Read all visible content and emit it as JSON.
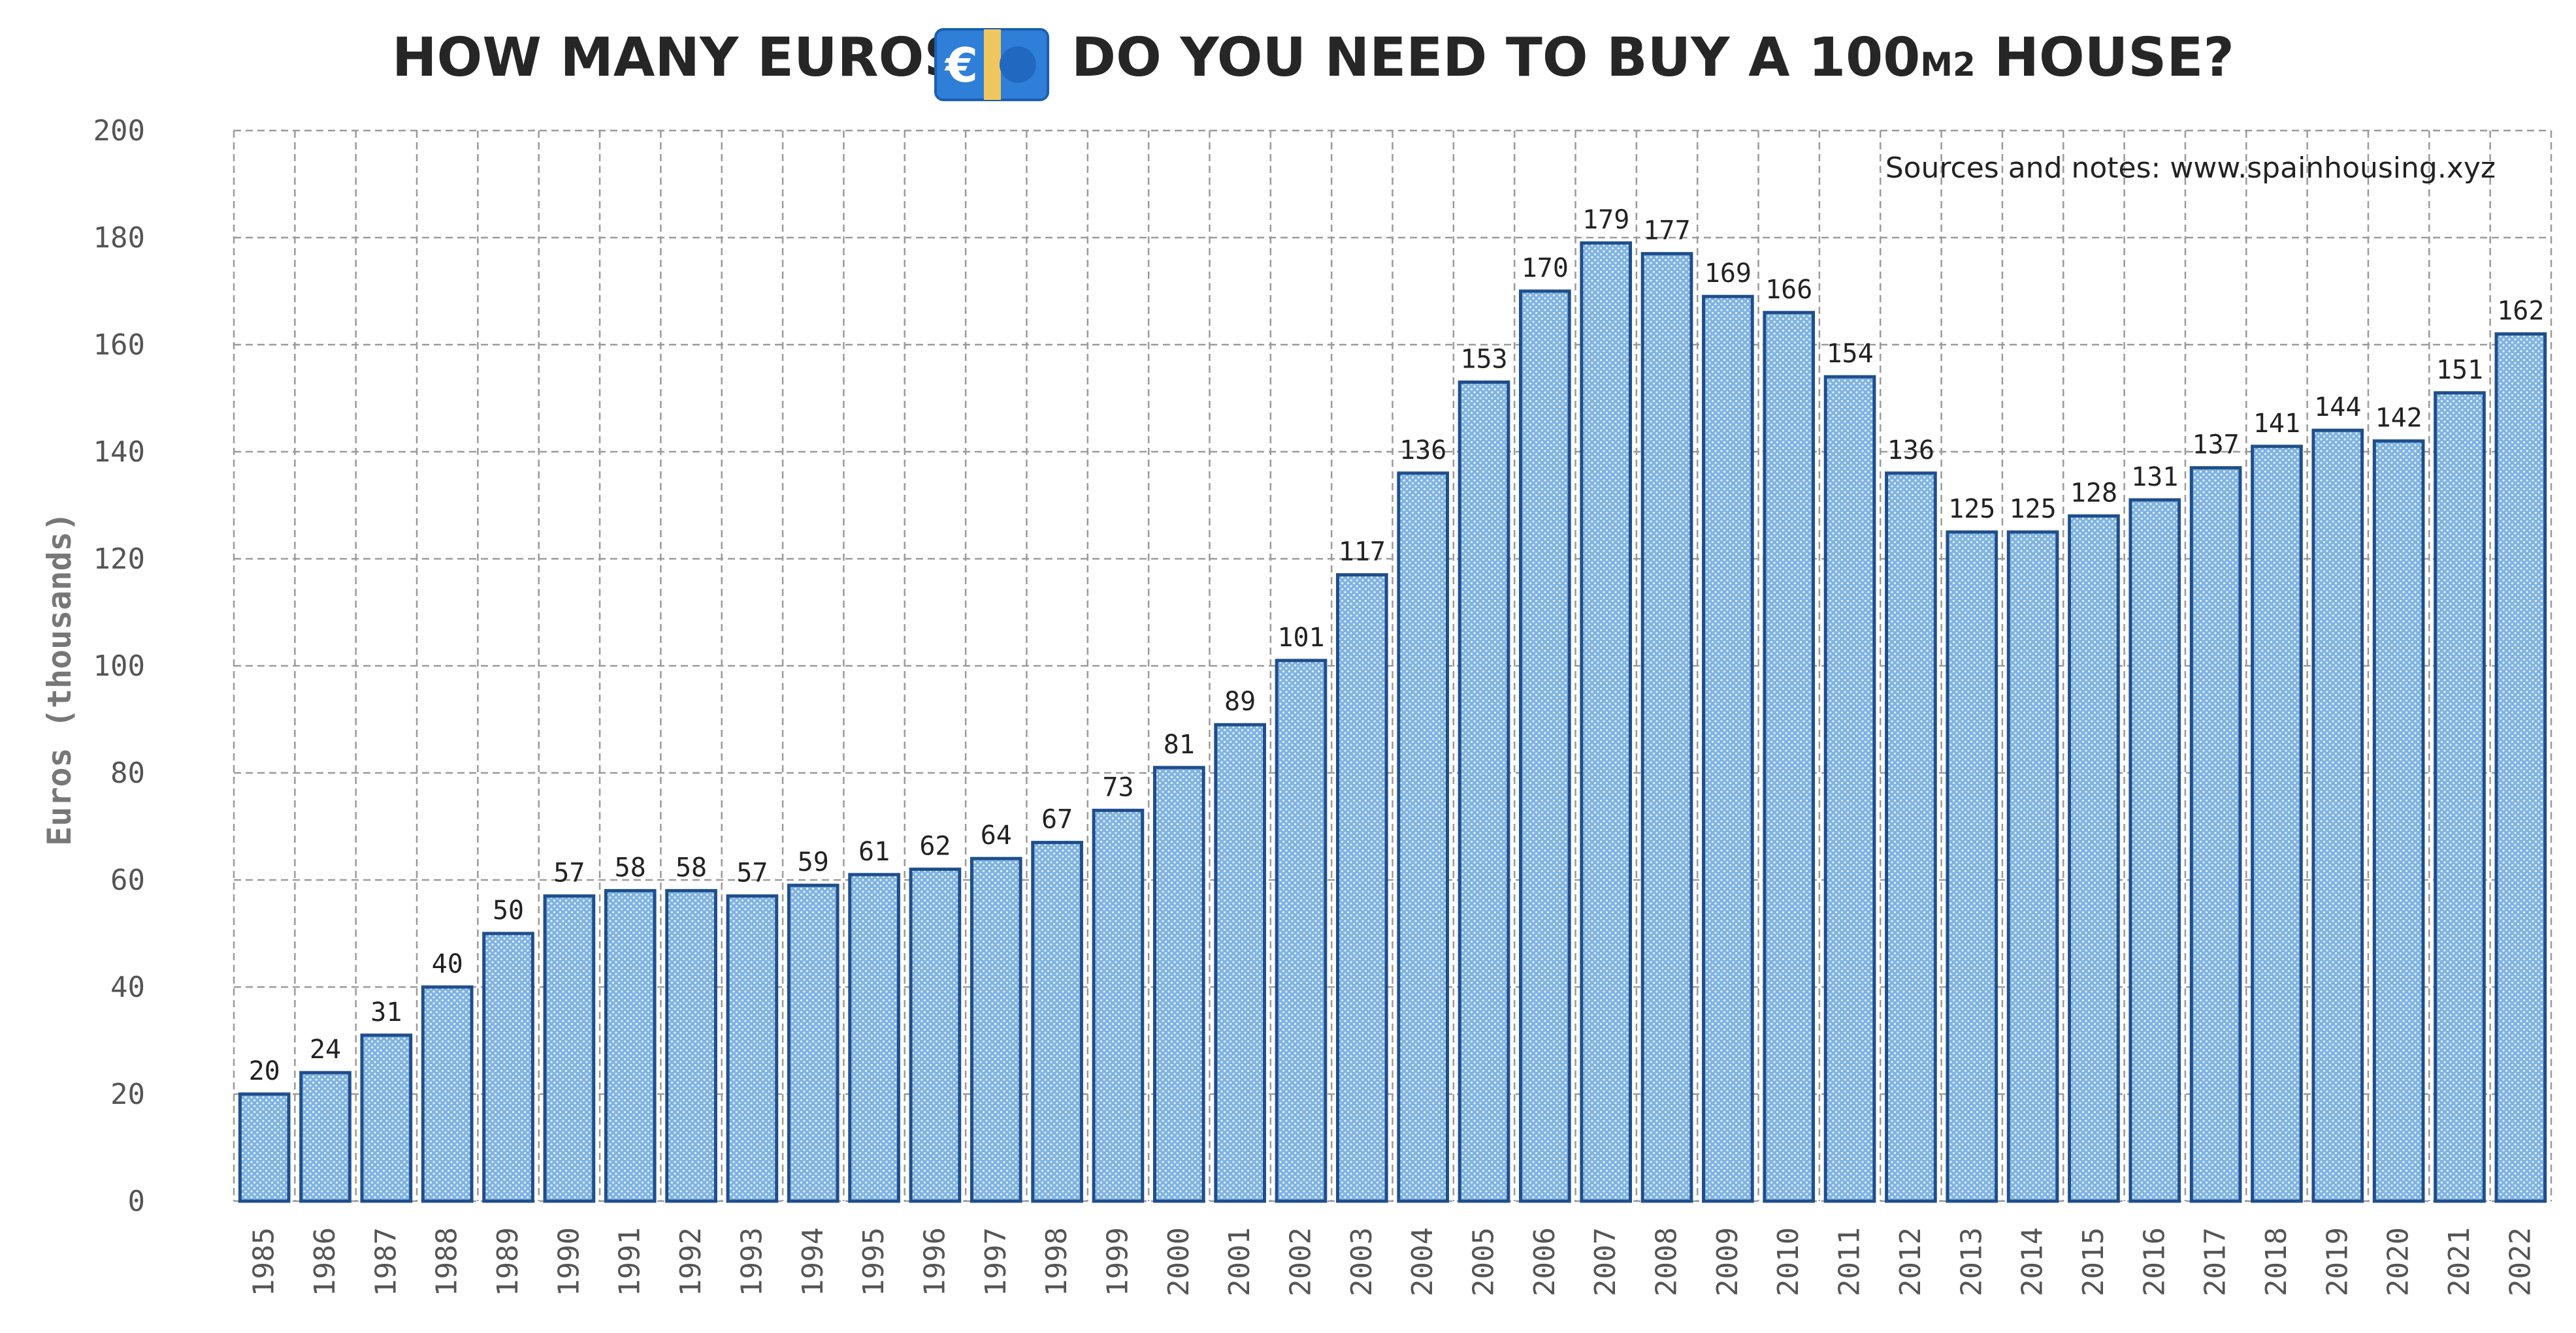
{
  "chart_data": {
    "type": "bar",
    "title": {
      "before_icon": "HOW MANY EUROS",
      "after_icon": " DO YOU NEED TO BUY A 100",
      "unit": "M2",
      "end": " HOUSE?"
    },
    "icon": "euro-banknote-icon",
    "icon_symbol": "€",
    "ylabel": "Euros (thousands)",
    "xlabel": "",
    "ylim": [
      0,
      200
    ],
    "yticks": [
      0,
      20,
      40,
      60,
      80,
      100,
      120,
      140,
      160,
      180,
      200
    ],
    "grid": true,
    "note": "Sources and notes: www.spainhousing.xyz",
    "colors": {
      "bar_fill": "#7fb3e3",
      "bar_edge": "#1f4e8c",
      "grid": "#9a9a9a",
      "title": "#262626",
      "tick": "#555555",
      "axis_title": "#777777",
      "icon_blue": "#2f7fd8",
      "icon_band": "#f0c75e"
    },
    "categories": [
      "1985",
      "1986",
      "1987",
      "1988",
      "1989",
      "1990",
      "1991",
      "1992",
      "1993",
      "1994",
      "1995",
      "1996",
      "1997",
      "1998",
      "1999",
      "2000",
      "2001",
      "2002",
      "2003",
      "2004",
      "2005",
      "2006",
      "2007",
      "2008",
      "2009",
      "2010",
      "2011",
      "2012",
      "2013",
      "2014",
      "2015",
      "2016",
      "2017",
      "2018",
      "2019",
      "2020",
      "2021",
      "2022"
    ],
    "values": [
      20,
      24,
      31,
      40,
      50,
      57,
      58,
      58,
      57,
      59,
      61,
      62,
      64,
      67,
      73,
      81,
      89,
      101,
      117,
      136,
      153,
      170,
      179,
      177,
      169,
      166,
      154,
      136,
      125,
      125,
      128,
      131,
      137,
      141,
      144,
      142,
      151,
      162
    ]
  }
}
